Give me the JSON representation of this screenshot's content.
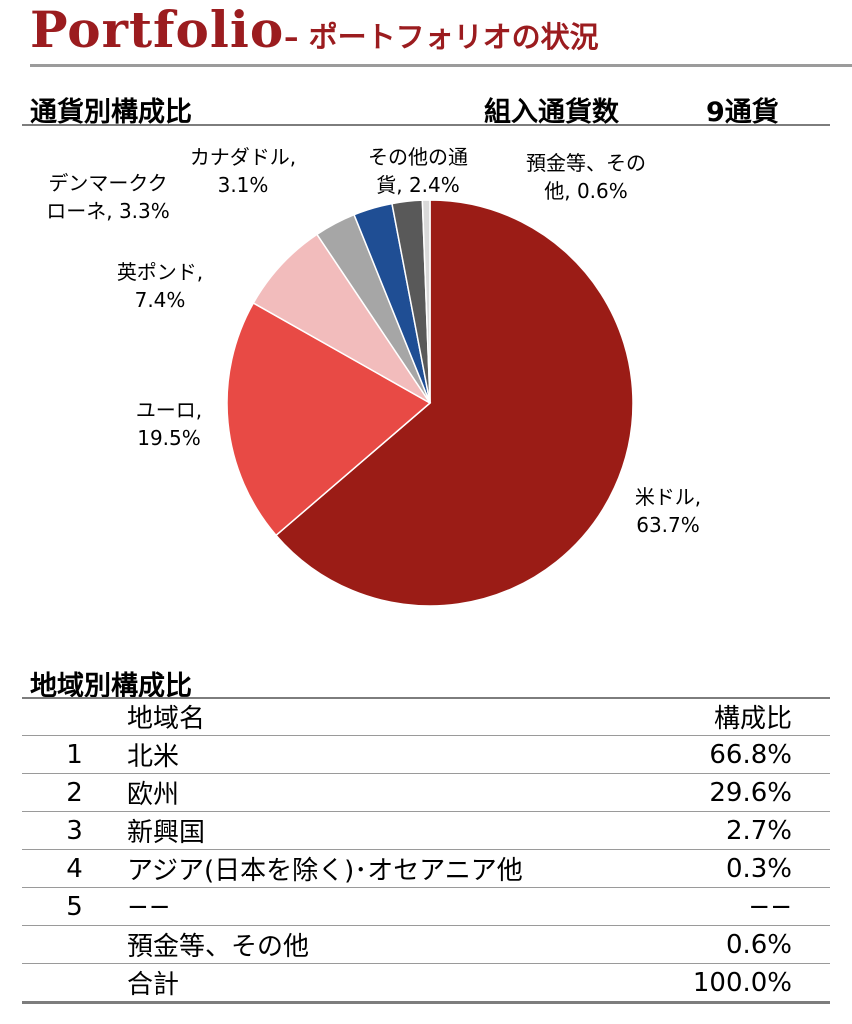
{
  "header": {
    "title": "Portfolio",
    "subtitle": "– ポートフォリオの状況"
  },
  "currency_section": {
    "title": "通貨別構成比",
    "count_label": "組入通貨数",
    "count_value": "9通貨"
  },
  "chart_data": {
    "type": "pie",
    "title": "通貨別構成比",
    "slices": [
      {
        "name": "米ドル",
        "value": 63.7,
        "label_line1": "米ドル,",
        "label_line2": "63.7%",
        "color": "#9b1c16"
      },
      {
        "name": "ユーロ",
        "value": 19.5,
        "label_line1": "ユーロ,",
        "label_line2": "19.5%",
        "color": "#e84a45"
      },
      {
        "name": "英ポンド",
        "value": 7.4,
        "label_line1": "英ポンド,",
        "label_line2": "7.4%",
        "color": "#f2bcbc"
      },
      {
        "name": "デンマーククローネ",
        "value": 3.3,
        "label_line1": "デンマークク",
        "label_line2": "ローネ, 3.3%",
        "color": "#a6a6a6"
      },
      {
        "name": "カナダドル",
        "value": 3.1,
        "label_line1": "カナダドル,",
        "label_line2": "3.1%",
        "color": "#1f4e94"
      },
      {
        "name": "その他の通貨",
        "value": 2.4,
        "label_line1": "その他の通",
        "label_line2": "貨, 2.4%",
        "color": "#595959"
      },
      {
        "name": "預金等、その他",
        "value": 0.6,
        "label_line1": "預金等、その",
        "label_line2": "他, 0.6%",
        "color": "#d9d9d9"
      }
    ]
  },
  "region_section": {
    "title": "地域別構成比",
    "headers": {
      "no": "",
      "name": "地域名",
      "value": "構成比"
    },
    "rows": [
      {
        "no": "1",
        "name": "北米",
        "value": "66.8%"
      },
      {
        "no": "2",
        "name": "欧州",
        "value": "29.6%"
      },
      {
        "no": "3",
        "name": "新興国",
        "value": "2.7%"
      },
      {
        "no": "4",
        "name": "アジア(日本を除く)･オセアニア他",
        "value": "0.3%"
      },
      {
        "no": "5",
        "name": "−−",
        "value": "−−"
      },
      {
        "no": "",
        "name": "預金等、その他",
        "value": "0.6%"
      },
      {
        "no": "",
        "name": "合計",
        "value": "100.0%"
      }
    ]
  }
}
